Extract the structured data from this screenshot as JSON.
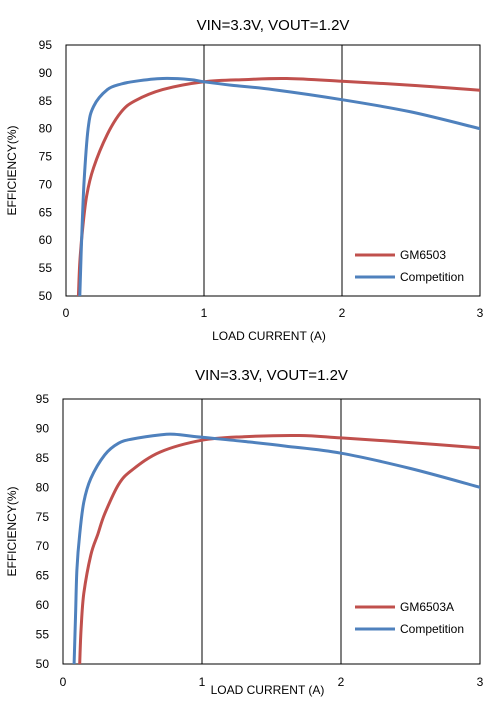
{
  "chart_data": [
    {
      "type": "line",
      "title": "VIN=3.3V, VOUT=1.2V",
      "xlabel": "LOAD CURRENT (A)",
      "ylabel": "EFFICIENCY(%)",
      "xlim": [
        0,
        3
      ],
      "ylim": [
        50,
        95
      ],
      "xticks": [
        "0",
        "1",
        "2",
        "3"
      ],
      "yticks": [
        "50",
        "55",
        "60",
        "65",
        "70",
        "75",
        "80",
        "85",
        "90",
        "95"
      ],
      "grid": true,
      "legend_position": "bottom-right",
      "series": [
        {
          "name": "GM6503",
          "color": "#c0504d",
          "x": [
            0.09,
            0.1,
            0.12,
            0.15,
            0.2,
            0.3,
            0.4,
            0.5,
            0.7,
            1.0,
            1.3,
            1.6,
            2.0,
            2.5,
            3.0
          ],
          "y": [
            50,
            56,
            62,
            68,
            73,
            79,
            83,
            85,
            87,
            88.4,
            88.8,
            89,
            88.5,
            87.8,
            86.9
          ]
        },
        {
          "name": "Competition",
          "color": "#4f81bd",
          "x": [
            0.1,
            0.11,
            0.13,
            0.16,
            0.2,
            0.3,
            0.4,
            0.5,
            0.7,
            0.9,
            1.0,
            1.2,
            1.5,
            2.0,
            2.5,
            3.0
          ],
          "y": [
            50,
            58,
            70,
            80,
            84,
            87,
            88,
            88.5,
            89,
            88.8,
            88.4,
            87.8,
            87,
            85.2,
            83,
            80
          ]
        }
      ]
    },
    {
      "type": "line",
      "title": "VIN=3.3V, VOUT=1.2V",
      "xlabel": "LOAD CURRENT (A)",
      "ylabel": "EFFICIENCY(%)",
      "xlim": [
        0,
        3
      ],
      "ylim": [
        50,
        95
      ],
      "xticks": [
        "0",
        "1",
        "2",
        "3"
      ],
      "yticks": [
        "50",
        "55",
        "60",
        "65",
        "70",
        "75",
        "80",
        "85",
        "90",
        "95"
      ],
      "grid": true,
      "legend_position": "bottom-right",
      "series": [
        {
          "name": "GM6503A",
          "color": "#c0504d",
          "x": [
            0.12,
            0.13,
            0.15,
            0.2,
            0.25,
            0.3,
            0.4,
            0.5,
            0.7,
            1.0,
            1.3,
            1.7,
            2.0,
            2.5,
            3.0
          ],
          "y": [
            50,
            56,
            62,
            68.5,
            72,
            75.5,
            80.5,
            83,
            86,
            88,
            88.6,
            88.8,
            88.4,
            87.6,
            86.7
          ]
        },
        {
          "name": "Competition",
          "color": "#4f81bd",
          "x": [
            0.08,
            0.09,
            0.1,
            0.12,
            0.15,
            0.2,
            0.3,
            0.4,
            0.5,
            0.7,
            0.8,
            1.0,
            1.3,
            1.6,
            2.0,
            2.5,
            3.0
          ],
          "y": [
            50,
            58,
            66,
            72,
            77.5,
            81.5,
            85.5,
            87.5,
            88.2,
            88.9,
            89,
            88.5,
            87.8,
            87,
            85.8,
            83.2,
            80
          ]
        }
      ]
    }
  ]
}
